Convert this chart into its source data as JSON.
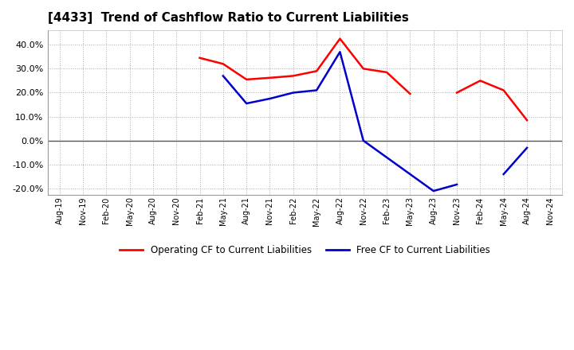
{
  "title": "[4433]  Trend of Cashflow Ratio to Current Liabilities",
  "title_fontsize": 11,
  "ylim": [
    -0.225,
    0.46
  ],
  "yticks": [
    -0.2,
    -0.1,
    0.0,
    0.1,
    0.2,
    0.3,
    0.4
  ],
  "background_color": "#ffffff",
  "plot_bg_color": "#ffffff",
  "grid_color": "#aaaaaa",
  "zero_line_color": "#555555",
  "x_labels": [
    "Aug-19",
    "Nov-19",
    "Feb-20",
    "May-20",
    "Aug-20",
    "Nov-20",
    "Feb-21",
    "May-21",
    "Aug-21",
    "Nov-21",
    "Feb-22",
    "May-22",
    "Aug-22",
    "Nov-22",
    "Feb-23",
    "May-23",
    "Aug-23",
    "Nov-23",
    "Feb-24",
    "May-24",
    "Aug-24",
    "Nov-24"
  ],
  "operating_cf_segments": [
    [
      [
        6,
        0.345
      ],
      [
        7,
        0.32
      ],
      [
        8,
        0.255
      ],
      [
        9,
        0.262
      ],
      [
        10,
        0.27
      ],
      [
        11,
        0.29
      ],
      [
        12,
        0.425
      ],
      [
        13,
        0.3
      ],
      [
        14,
        0.285
      ],
      [
        15,
        0.195
      ]
    ],
    [
      [
        17,
        0.2
      ],
      [
        18,
        0.25
      ],
      [
        19,
        0.21
      ],
      [
        20,
        0.085
      ]
    ]
  ],
  "free_cf_segments": [
    [
      [
        7,
        0.27
      ],
      [
        8,
        0.155
      ],
      [
        9,
        0.175
      ],
      [
        10,
        0.2
      ],
      [
        11,
        0.21
      ],
      [
        12,
        0.37
      ],
      [
        13,
        0.0
      ],
      [
        16,
        -0.21
      ],
      [
        17,
        -0.183
      ]
    ],
    [
      [
        19,
        -0.14
      ],
      [
        20,
        -0.03
      ]
    ]
  ],
  "operating_cf_color": "#ff0000",
  "free_cf_color": "#0000cc",
  "operating_cf_label": "Operating CF to Current Liabilities",
  "free_cf_label": "Free CF to Current Liabilities"
}
